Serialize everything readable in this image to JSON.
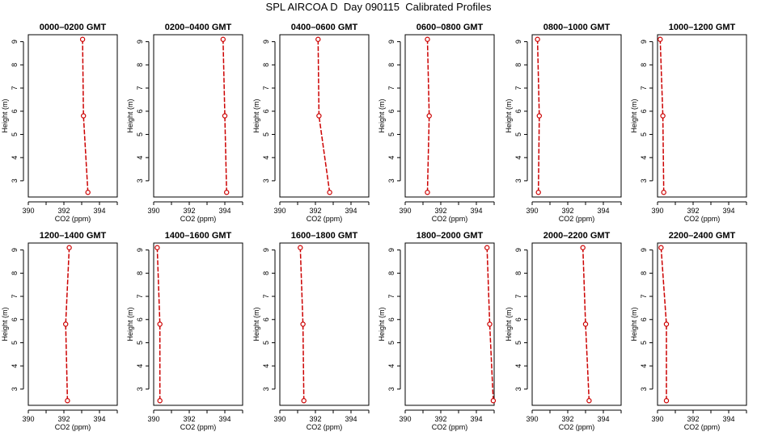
{
  "page": {
    "title": "SPL AIRCOA D  Day 090115  Calibrated Profiles"
  },
  "style": {
    "line_color": "#cc0000",
    "marker_color": "#cc0000",
    "axis_color": "#000000"
  },
  "chart_data": [
    {
      "type": "line",
      "title": "0000–0200 GMT",
      "xlabel": "CO2 (ppm)",
      "ylabel": "Height (m)",
      "xlim": [
        390,
        395
      ],
      "ylim": [
        2.3,
        9.3
      ],
      "xticks": [
        390,
        392,
        394
      ],
      "yticks": [
        3,
        4,
        5,
        6,
        7,
        8,
        9
      ],
      "series": [
        {
          "x": [
            393.35,
            393.1,
            393.05
          ],
          "y": [
            2.5,
            5.8,
            9.1
          ]
        }
      ]
    },
    {
      "type": "line",
      "title": "0200–0400 GMT",
      "xlabel": "CO2 (ppm)",
      "ylabel": "Height (m)",
      "xlim": [
        390,
        395
      ],
      "ylim": [
        2.3,
        9.3
      ],
      "xticks": [
        390,
        392,
        394
      ],
      "yticks": [
        3,
        4,
        5,
        6,
        7,
        8,
        9
      ],
      "series": [
        {
          "x": [
            394.1,
            394.0,
            393.9
          ],
          "y": [
            2.5,
            5.8,
            9.1
          ]
        }
      ]
    },
    {
      "type": "line",
      "title": "0400–0600 GMT",
      "xlabel": "CO2 (ppm)",
      "ylabel": "Height (m)",
      "xlim": [
        390,
        395
      ],
      "ylim": [
        2.3,
        9.3
      ],
      "xticks": [
        390,
        392,
        394
      ],
      "yticks": [
        3,
        4,
        5,
        6,
        7,
        8,
        9
      ],
      "series": [
        {
          "x": [
            392.8,
            392.2,
            392.15
          ],
          "y": [
            2.5,
            5.8,
            9.1
          ]
        }
      ]
    },
    {
      "type": "line",
      "title": "0600–0800 GMT",
      "xlabel": "CO2 (ppm)",
      "ylabel": "Height (m)",
      "xlim": [
        390,
        395
      ],
      "ylim": [
        2.3,
        9.3
      ],
      "xticks": [
        390,
        392,
        394
      ],
      "yticks": [
        3,
        4,
        5,
        6,
        7,
        8,
        9
      ],
      "series": [
        {
          "x": [
            391.25,
            391.35,
            391.25
          ],
          "y": [
            2.5,
            5.8,
            9.1
          ]
        }
      ]
    },
    {
      "type": "line",
      "title": "0800–1000 GMT",
      "xlabel": "CO2 (ppm)",
      "ylabel": "Height (m)",
      "xlim": [
        390,
        395
      ],
      "ylim": [
        2.3,
        9.3
      ],
      "xticks": [
        390,
        392,
        394
      ],
      "yticks": [
        3,
        4,
        5,
        6,
        7,
        8,
        9
      ],
      "series": [
        {
          "x": [
            390.35,
            390.4,
            390.3
          ],
          "y": [
            2.5,
            5.8,
            9.1
          ]
        }
      ]
    },
    {
      "type": "line",
      "title": "1000–1200 GMT",
      "xlabel": "CO2 (ppm)",
      "ylabel": "Height (m)",
      "xlim": [
        390,
        395
      ],
      "ylim": [
        2.3,
        9.3
      ],
      "xticks": [
        390,
        392,
        394
      ],
      "yticks": [
        3,
        4,
        5,
        6,
        7,
        8,
        9
      ],
      "series": [
        {
          "x": [
            390.35,
            390.3,
            390.15
          ],
          "y": [
            2.5,
            5.8,
            9.1
          ]
        }
      ]
    },
    {
      "type": "line",
      "title": "1200–1400 GMT",
      "xlabel": "CO2 (ppm)",
      "ylabel": "Height (m)",
      "xlim": [
        390,
        395
      ],
      "ylim": [
        2.3,
        9.3
      ],
      "xticks": [
        390,
        392,
        394
      ],
      "yticks": [
        3,
        4,
        5,
        6,
        7,
        8,
        9
      ],
      "series": [
        {
          "x": [
            392.2,
            392.1,
            392.3
          ],
          "y": [
            2.5,
            5.8,
            9.1
          ]
        }
      ]
    },
    {
      "type": "line",
      "title": "1400–1600 GMT",
      "xlabel": "CO2 (ppm)",
      "ylabel": "Height (m)",
      "xlim": [
        390,
        395
      ],
      "ylim": [
        2.3,
        9.3
      ],
      "xticks": [
        390,
        392,
        394
      ],
      "yticks": [
        3,
        4,
        5,
        6,
        7,
        8,
        9
      ],
      "series": [
        {
          "x": [
            390.35,
            390.35,
            390.2
          ],
          "y": [
            2.5,
            5.8,
            9.1
          ]
        }
      ]
    },
    {
      "type": "line",
      "title": "1600–1800 GMT",
      "xlabel": "CO2 (ppm)",
      "ylabel": "Height (m)",
      "xlim": [
        390,
        395
      ],
      "ylim": [
        2.3,
        9.3
      ],
      "xticks": [
        390,
        392,
        394
      ],
      "yticks": [
        3,
        4,
        5,
        6,
        7,
        8,
        9
      ],
      "series": [
        {
          "x": [
            391.35,
            391.3,
            391.15
          ],
          "y": [
            2.5,
            5.8,
            9.1
          ]
        }
      ]
    },
    {
      "type": "line",
      "title": "1800–2000 GMT",
      "xlabel": "CO2 (ppm)",
      "ylabel": "Height (m)",
      "xlim": [
        390,
        395
      ],
      "ylim": [
        2.3,
        9.3
      ],
      "xticks": [
        390,
        392,
        394
      ],
      "yticks": [
        3,
        4,
        5,
        6,
        7,
        8,
        9
      ],
      "series": [
        {
          "x": [
            394.95,
            394.75,
            394.6
          ],
          "y": [
            2.5,
            5.8,
            9.1
          ]
        }
      ]
    },
    {
      "type": "line",
      "title": "2000–2200 GMT",
      "xlabel": "CO2 (ppm)",
      "ylabel": "Height (m)",
      "xlim": [
        390,
        395
      ],
      "ylim": [
        2.3,
        9.3
      ],
      "xticks": [
        390,
        392,
        394
      ],
      "yticks": [
        3,
        4,
        5,
        6,
        7,
        8,
        9
      ],
      "series": [
        {
          "x": [
            393.2,
            393.0,
            392.85
          ],
          "y": [
            2.5,
            5.8,
            9.1
          ]
        }
      ]
    },
    {
      "type": "line",
      "title": "2200–2400 GMT",
      "xlabel": "CO2 (ppm)",
      "ylabel": "Height (m)",
      "xlim": [
        390,
        395
      ],
      "ylim": [
        2.3,
        9.3
      ],
      "xticks": [
        390,
        392,
        394
      ],
      "yticks": [
        3,
        4,
        5,
        6,
        7,
        8,
        9
      ],
      "series": [
        {
          "x": [
            390.5,
            390.5,
            390.2
          ],
          "y": [
            2.5,
            5.8,
            9.1
          ]
        }
      ]
    }
  ]
}
